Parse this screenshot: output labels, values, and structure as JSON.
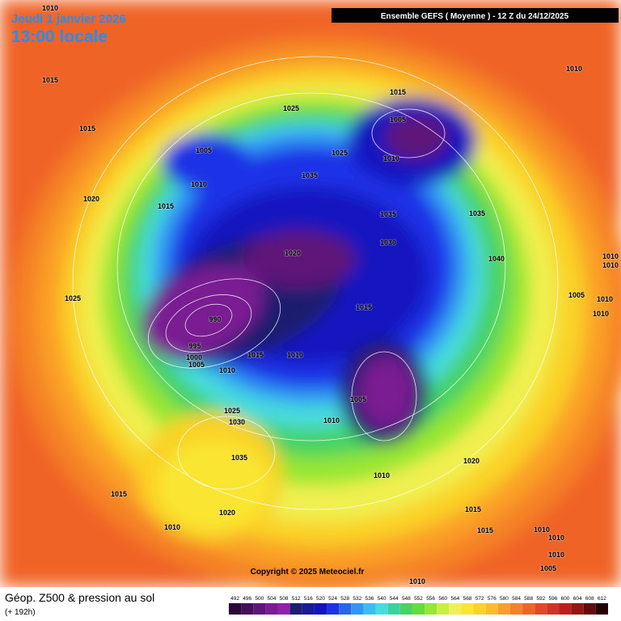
{
  "header": {
    "date": "Jeudi 1 janvier 2026",
    "time": "13:00 locale",
    "run": "Ensemble GEFS  ( Moyenne )  -  12 Z du 24/12/2025"
  },
  "copyright": "Copyright © 2025 Meteociel.fr",
  "footer": {
    "title": "Géop. Z500 & pression au sol",
    "subtitle": "(+ 192h)"
  },
  "isobar_labels": [
    1010,
    1015,
    1015,
    1005,
    1010,
    1015,
    1020,
    1025,
    1025,
    1025,
    1035,
    1015,
    1005,
    1010,
    1035,
    1030,
    1020,
    1035,
    1040,
    1015,
    990,
    995,
    1000,
    1005,
    1010,
    1015,
    1010,
    1005,
    1010,
    1025,
    1030,
    1035,
    1015,
    1020,
    1010,
    1010,
    1020,
    1015,
    1015,
    1010,
    1010,
    1010,
    1005,
    1010,
    1005,
    1010,
    1010,
    1010,
    1010,
    1010
  ],
  "legend": {
    "values": [
      492,
      496,
      500,
      504,
      508,
      512,
      516,
      520,
      524,
      528,
      532,
      536,
      540,
      544,
      548,
      552,
      556,
      560,
      564,
      568,
      572,
      576,
      580,
      584,
      588,
      592,
      596,
      600,
      604,
      608,
      612
    ],
    "colors": [
      "#2a0838",
      "#45105a",
      "#5e1678",
      "#7a1c92",
      "#8e22a6",
      "#1e1e6e",
      "#1a1a96",
      "#1414c0",
      "#1e32e6",
      "#2864f0",
      "#3296f5",
      "#3cbef5",
      "#46dcdc",
      "#3cd2a0",
      "#46d264",
      "#64dc3c",
      "#96e632",
      "#c8f03c",
      "#f0f050",
      "#fae632",
      "#fad228",
      "#fabe28",
      "#faa028",
      "#f58228",
      "#f06428",
      "#e64628",
      "#d23228",
      "#be1e1e",
      "#961414",
      "#640a0a",
      "#280000"
    ]
  }
}
